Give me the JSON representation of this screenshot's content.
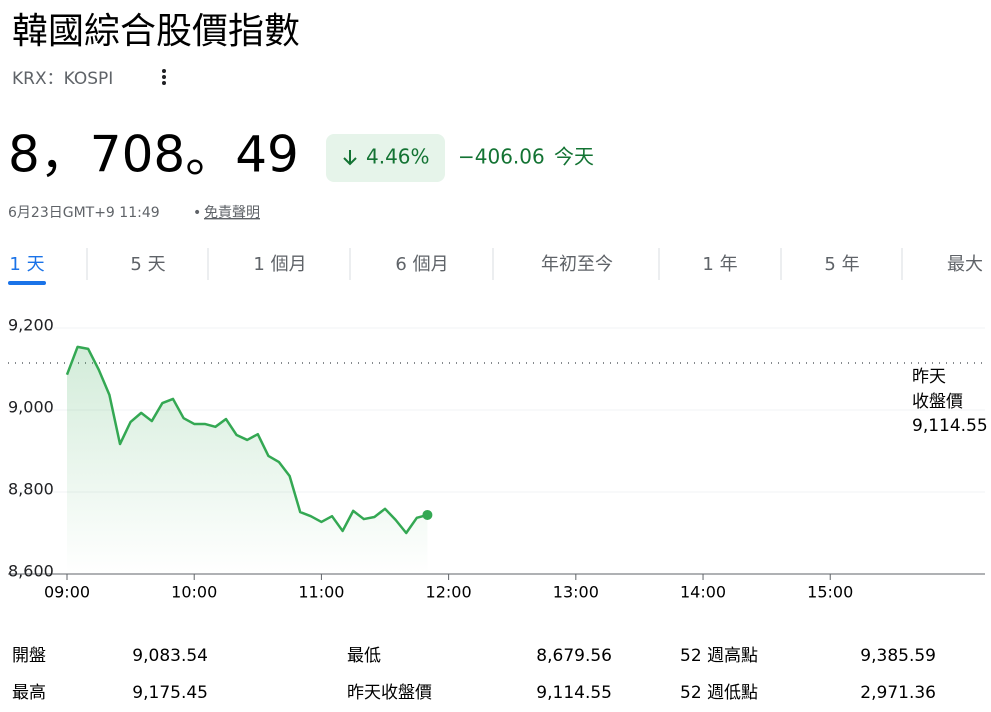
{
  "header": {
    "title": "韓國綜合股價指數",
    "exchange": "KRX：KOSPI",
    "price": "8，708。49",
    "change_percent": "4.46%",
    "change": "−406.06",
    "period": "今天",
    "timestamp": "6月23日GMT+9 11:49",
    "disclaimer": "免責聲明"
  },
  "tabs": [
    "1 天",
    "5 天",
    "1 個月",
    "6 個月",
    "年初至今",
    "1 年",
    "5 年",
    "最大"
  ],
  "chart_data": {
    "type": "line",
    "color": "#34a853",
    "x": [
      540,
      545,
      550,
      555,
      560,
      565,
      570,
      575,
      580,
      585,
      590,
      595,
      600,
      605,
      610,
      615,
      620,
      625,
      630,
      635,
      640,
      645,
      650,
      655,
      660,
      665,
      670,
      675,
      680,
      685,
      690,
      695,
      700,
      705,
      710
    ],
    "values": [
      9086,
      9154,
      9149,
      9098,
      9037,
      8917,
      8971,
      8993,
      8973,
      9017,
      9027,
      8980,
      8966,
      8966,
      8959,
      8978,
      8939,
      8927,
      8941,
      8888,
      8873,
      8839,
      8751,
      8741,
      8727,
      8741,
      8705,
      8754,
      8734,
      8739,
      8759,
      8732,
      8700,
      8737,
      8744
    ],
    "xlim": [
      540,
      973
    ],
    "xticks": [
      {
        "value": 540,
        "label": "09:00"
      },
      {
        "value": 600,
        "label": "10:00"
      },
      {
        "value": 660,
        "label": "11:00"
      },
      {
        "value": 720,
        "label": "12:00"
      },
      {
        "value": 780,
        "label": "13:00"
      },
      {
        "value": 840,
        "label": "14:00"
      },
      {
        "value": 900,
        "label": "15:00"
      }
    ],
    "ylim": [
      8600,
      9200
    ],
    "yticks": [
      {
        "value": 8600,
        "label": "8,600"
      },
      {
        "value": 8800,
        "label": "8,800"
      },
      {
        "value": 9000,
        "label": "9,000"
      },
      {
        "value": 9200,
        "label": "9,200"
      }
    ],
    "grid": true,
    "reference": {
      "label": [
        "昨天",
        "收盤價"
      ],
      "value": 9114.55,
      "value_label": "9,114.55"
    }
  },
  "stats": [
    [
      {
        "label": "開盤",
        "value": "9,083.54"
      },
      {
        "label": "最低",
        "value": "8,679.56"
      },
      {
        "label": "52 週高點",
        "value": "9,385.59"
      }
    ],
    [
      {
        "label": "最高",
        "value": "9,175.45"
      },
      {
        "label": "昨天收盤價",
        "value": "9,114.55"
      },
      {
        "label": "52 週低點",
        "value": "2,971.36"
      }
    ]
  ]
}
